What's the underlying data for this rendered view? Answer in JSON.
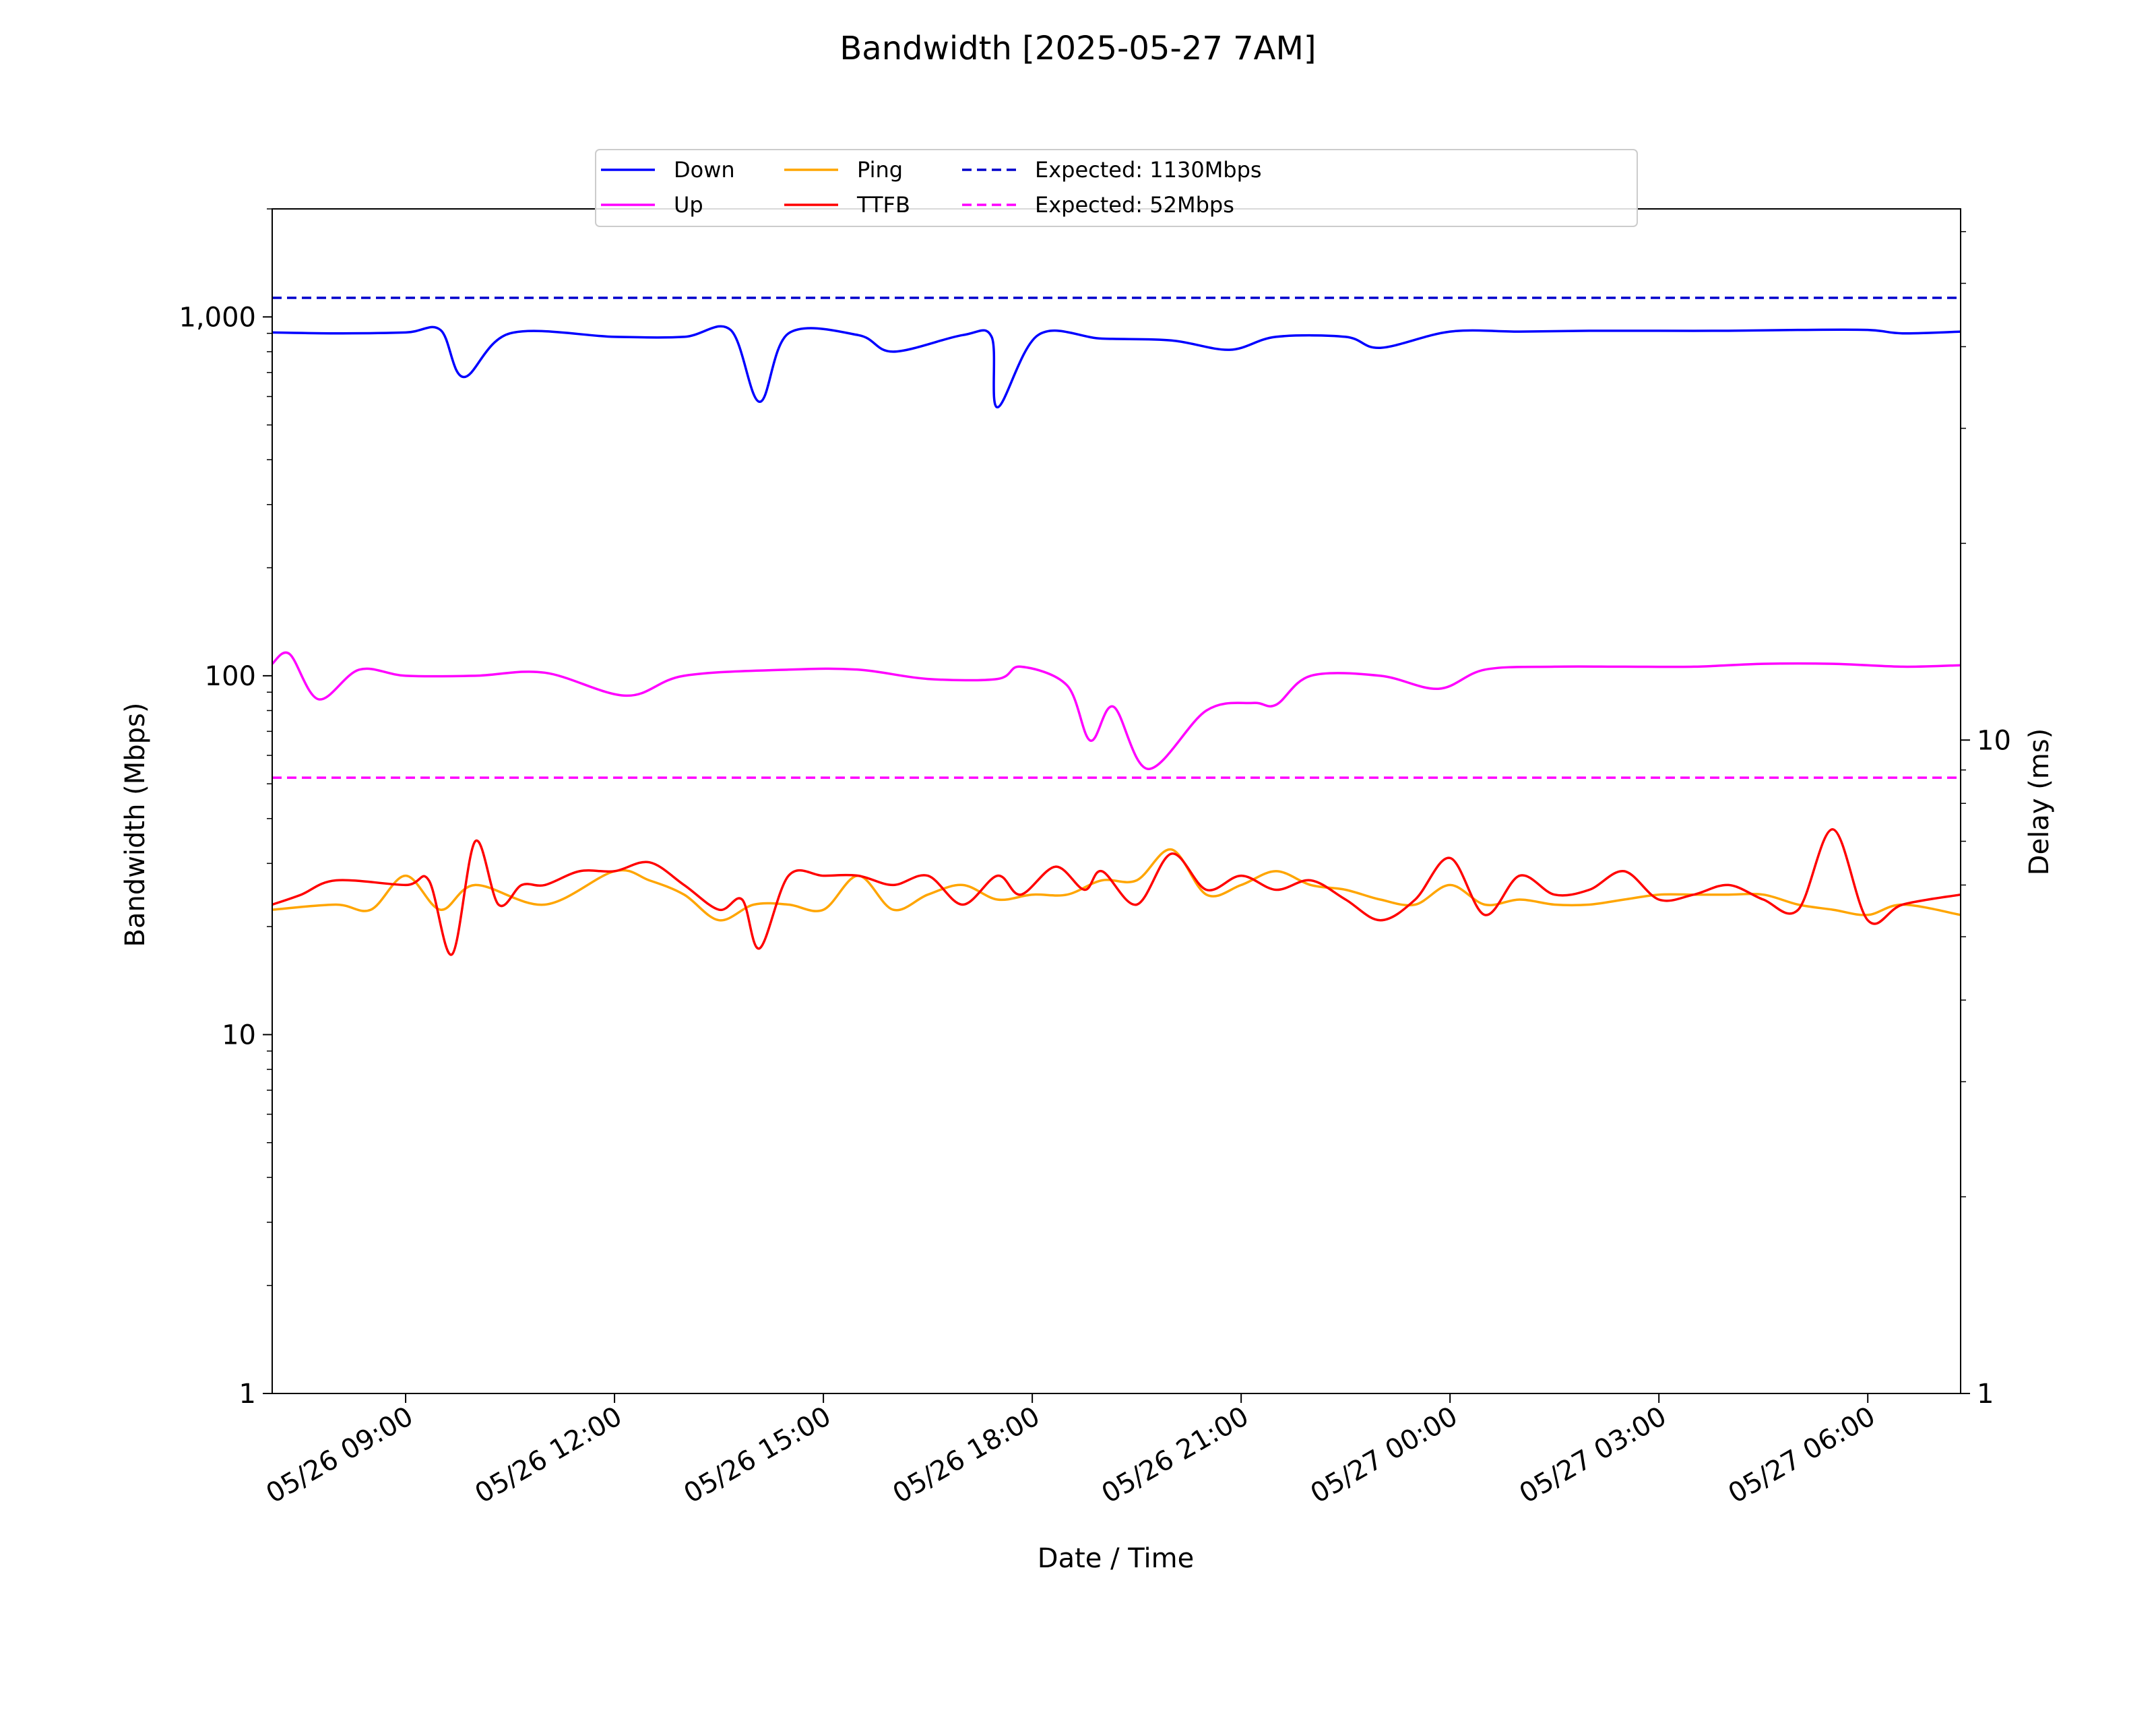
{
  "chart_data": {
    "type": "line",
    "title": "Bandwidth [2025-05-27 7AM]",
    "xlabel": "Date / Time",
    "ylabel": "Bandwidth (Mbps)",
    "y2label": "Delay (ms)",
    "x_start": "05/26 07:05",
    "x_end": "05/27 07:20",
    "x_ticks": [
      "05/26 09:00",
      "05/26 12:00",
      "05/26 15:00",
      "05/26 18:00",
      "05/26 21:00",
      "05/27 00:00",
      "05/27 03:00",
      "05/27 06:00"
    ],
    "y_scale": "log",
    "ylim": [
      1,
      2000
    ],
    "y_ticks": [
      "1",
      "10",
      "100",
      "1,000"
    ],
    "y2_scale": "log",
    "y2lim": [
      1,
      65
    ],
    "y2_ticks": [
      "1",
      "10"
    ],
    "grid": false,
    "legend": {
      "placement": "top-center",
      "columns": 4
    },
    "series": [
      {
        "name": "Down",
        "axis": "left",
        "color": "#0000ff",
        "style": "solid",
        "x": [
          "05/26 07:05",
          "05/26 08:00",
          "05/26 09:00",
          "05/26 09:30",
          "05/26 09:50",
          "05/26 10:30",
          "05/26 12:00",
          "05/26 13:00",
          "05/26 13:40",
          "05/26 14:05",
          "05/26 14:30",
          "05/26 15:30",
          "05/26 16:00",
          "05/26 17:00",
          "05/26 17:25",
          "05/26 17:30",
          "05/26 18:05",
          "05/26 19:00",
          "05/26 20:00",
          "05/26 20:50",
          "05/26 21:30",
          "05/26 22:30",
          "05/26 23:00",
          "05/27 00:00",
          "05/27 01:00",
          "05/27 02:00",
          "05/27 03:00",
          "05/27 04:00",
          "05/27 05:00",
          "05/27 06:00",
          "05/27 06:30",
          "05/27 07:20"
        ],
        "values": [
          905,
          900,
          905,
          920,
          680,
          900,
          880,
          880,
          920,
          580,
          900,
          890,
          800,
          890,
          880,
          560,
          890,
          870,
          860,
          810,
          880,
          880,
          820,
          910,
          910,
          915,
          915,
          915,
          920,
          920,
          900,
          910
        ]
      },
      {
        "name": "Up",
        "axis": "left",
        "color": "#ff00ff",
        "style": "solid",
        "x": [
          "05/26 07:05",
          "05/26 07:20",
          "05/26 07:45",
          "05/26 08:20",
          "05/26 09:00",
          "05/26 10:00",
          "05/26 11:00",
          "05/26 12:10",
          "05/26 13:00",
          "05/26 14:30",
          "05/26 15:30",
          "05/26 16:30",
          "05/26 17:30",
          "05/26 17:50",
          "05/26 18:30",
          "05/26 18:50",
          "05/26 19:10",
          "05/26 19:40",
          "05/26 20:30",
          "05/26 21:10",
          "05/26 21:30",
          "05/26 22:00",
          "05/26 23:00",
          "05/26 23:50",
          "05/27 00:30",
          "05/27 01:30",
          "05/27 02:30",
          "05/27 03:30",
          "05/27 04:30",
          "05/27 05:30",
          "05/27 06:30",
          "05/27 07:20"
        ],
        "values": [
          108,
          115,
          86,
          104,
          100,
          100,
          102,
          88,
          100,
          104,
          104,
          98,
          98,
          106,
          94,
          66,
          82,
          55,
          80,
          84,
          83,
          100,
          100,
          92,
          104,
          106,
          106,
          106,
          108,
          108,
          106,
          107
        ]
      },
      {
        "name": "Ping",
        "axis": "right",
        "color": "#ffa500",
        "style": "solid",
        "x": [
          "05/26 07:05",
          "05/26 08:00",
          "05/26 08:30",
          "05/26 09:00",
          "05/26 09:30",
          "05/26 10:00",
          "05/26 11:00",
          "05/26 12:00",
          "05/26 12:30",
          "05/26 13:00",
          "05/26 13:30",
          "05/26 14:00",
          "05/26 14:30",
          "05/26 15:00",
          "05/26 15:30",
          "05/26 16:00",
          "05/26 16:30",
          "05/26 17:00",
          "05/26 17:30",
          "05/26 18:00",
          "05/26 18:30",
          "05/26 19:00",
          "05/26 19:30",
          "05/26 20:00",
          "05/26 20:30",
          "05/26 21:00",
          "05/26 21:30",
          "05/26 22:00",
          "05/26 22:30",
          "05/26 23:00",
          "05/26 23:30",
          "05/27 00:00",
          "05/27 00:30",
          "05/27 01:00",
          "05/27 01:30",
          "05/27 02:00",
          "05/27 02:30",
          "05/27 03:00",
          "05/27 03:30",
          "05/27 04:00",
          "05/27 04:30",
          "05/27 05:00",
          "05/27 05:30",
          "05/27 06:00",
          "05/27 06:30",
          "05/27 07:20"
        ],
        "values": [
          5.5,
          5.6,
          5.5,
          6.2,
          5.5,
          6.0,
          5.6,
          6.3,
          6.1,
          5.8,
          5.3,
          5.6,
          5.6,
          5.5,
          6.2,
          5.5,
          5.8,
          6.0,
          5.7,
          5.8,
          5.8,
          6.1,
          6.1,
          6.8,
          5.8,
          6.0,
          6.3,
          6.0,
          5.9,
          5.7,
          5.6,
          6.0,
          5.6,
          5.7,
          5.6,
          5.6,
          5.7,
          5.8,
          5.8,
          5.8,
          5.8,
          5.6,
          5.5,
          5.4,
          5.6,
          5.4
        ]
      },
      {
        "name": "TTFB",
        "axis": "right",
        "color": "#ff0000",
        "style": "solid",
        "x": [
          "05/26 07:05",
          "05/26 07:30",
          "05/26 08:00",
          "05/26 09:00",
          "05/26 09:20",
          "05/26 09:40",
          "05/26 10:00",
          "05/26 10:20",
          "05/26 10:40",
          "05/26 11:00",
          "05/26 11:30",
          "05/26 12:00",
          "05/26 12:30",
          "05/26 13:00",
          "05/26 13:30",
          "05/26 13:50",
          "05/26 14:05",
          "05/26 14:30",
          "05/26 15:00",
          "05/26 15:30",
          "05/26 16:00",
          "05/26 16:30",
          "05/26 17:00",
          "05/26 17:30",
          "05/26 17:50",
          "05/26 18:20",
          "05/26 18:45",
          "05/26 19:00",
          "05/26 19:30",
          "05/26 20:00",
          "05/26 20:30",
          "05/26 21:00",
          "05/26 21:30",
          "05/26 22:00",
          "05/26 22:30",
          "05/26 23:00",
          "05/26 23:30",
          "05/27 00:00",
          "05/27 00:30",
          "05/27 01:00",
          "05/27 01:30",
          "05/27 02:00",
          "05/27 02:30",
          "05/27 03:00",
          "05/27 03:30",
          "05/27 04:00",
          "05/27 04:30",
          "05/27 05:00",
          "05/27 05:30",
          "05/27 06:00",
          "05/27 06:30",
          "05/27 07:20"
        ],
        "values": [
          5.6,
          5.8,
          6.1,
          6.0,
          6.1,
          4.7,
          7.0,
          5.6,
          6.0,
          6.0,
          6.3,
          6.3,
          6.5,
          6.0,
          5.5,
          5.7,
          4.8,
          6.2,
          6.2,
          6.2,
          6.0,
          6.2,
          5.6,
          6.2,
          5.8,
          6.4,
          5.9,
          6.3,
          5.6,
          6.7,
          5.9,
          6.2,
          5.9,
          6.1,
          5.7,
          5.3,
          5.7,
          6.6,
          5.4,
          6.2,
          5.8,
          5.9,
          6.3,
          5.7,
          5.8,
          6.0,
          5.7,
          5.5,
          7.3,
          5.3,
          5.6,
          5.8
        ]
      },
      {
        "name": "Expected: 1130Mbps",
        "axis": "left",
        "color": "#0000cc",
        "style": "dashed",
        "x": [
          "05/26 07:05",
          "05/27 07:20"
        ],
        "values": [
          1130,
          1130
        ]
      },
      {
        "name": "Expected: 52Mbps",
        "axis": "left",
        "color": "#ff00ff",
        "style": "dashed",
        "x": [
          "05/26 07:05",
          "05/27 07:20"
        ],
        "values": [
          52,
          52
        ]
      }
    ]
  }
}
